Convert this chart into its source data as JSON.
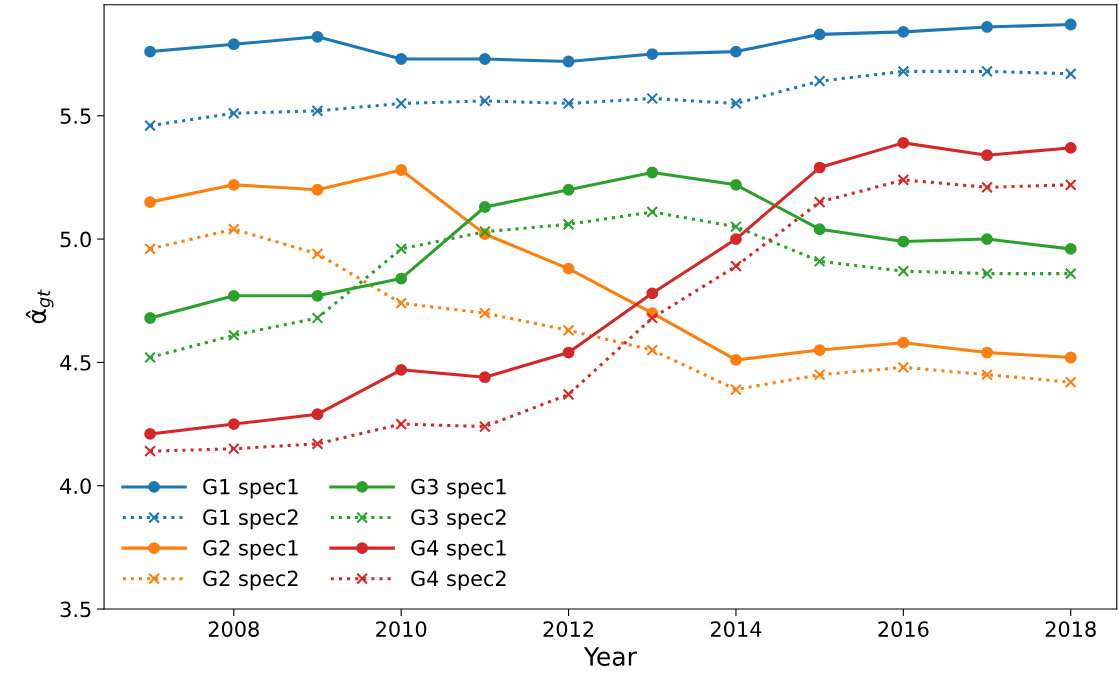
{
  "chart_data": {
    "type": "line",
    "xlabel": "Year",
    "ylabel": "α̂$_{gt}$",
    "x": [
      2007,
      2008,
      2009,
      2010,
      2011,
      2012,
      2013,
      2014,
      2015,
      2016,
      2017,
      2018
    ],
    "xlim": [
      2006.45,
      2018.55
    ],
    "xticks": [
      2008,
      2010,
      2012,
      2014,
      2016,
      2018
    ],
    "ylim": [
      3.5,
      5.95
    ],
    "yticks": [
      {
        "value": 3.5,
        "label": "3.5"
      },
      {
        "value": 4.0,
        "label": "4.0"
      },
      {
        "value": 4.5,
        "label": "4.5"
      },
      {
        "value": 5.0,
        "label": "5.0"
      },
      {
        "value": 5.5,
        "label": "5.5"
      }
    ],
    "grid": false,
    "legend": "bottom left",
    "series": [
      {
        "name": "G1 spec1",
        "color": "#1f77b4",
        "marker": "circle",
        "line_style": "solid",
        "values": [
          5.76,
          5.79,
          5.82,
          5.73,
          5.73,
          5.72,
          5.75,
          5.76,
          5.83,
          5.84,
          5.86,
          5.87
        ]
      },
      {
        "name": "G1 spec2",
        "color": "#1f77b4",
        "marker": "cross",
        "line_style": "dotted",
        "values": [
          5.46,
          5.51,
          5.52,
          5.55,
          5.56,
          5.55,
          5.57,
          5.55,
          5.64,
          5.68,
          5.68,
          5.67
        ]
      },
      {
        "name": "G2 spec1",
        "color": "#ff7f0e",
        "marker": "circle",
        "line_style": "solid",
        "values": [
          5.15,
          5.22,
          5.2,
          5.28,
          5.02,
          4.88,
          4.7,
          4.51,
          4.55,
          4.58,
          4.54,
          4.52
        ]
      },
      {
        "name": "G2 spec2",
        "color": "#ff7f0e",
        "marker": "cross",
        "line_style": "dotted",
        "values": [
          4.96,
          5.04,
          4.94,
          4.74,
          4.7,
          4.63,
          4.55,
          4.39,
          4.45,
          4.48,
          4.45,
          4.42
        ]
      },
      {
        "name": "G3 spec1",
        "color": "#2ca02c",
        "marker": "circle",
        "line_style": "solid",
        "values": [
          4.68,
          4.77,
          4.77,
          4.84,
          5.13,
          5.2,
          5.27,
          5.22,
          5.04,
          4.99,
          5.0,
          4.96
        ]
      },
      {
        "name": "G3 spec2",
        "color": "#2ca02c",
        "marker": "cross",
        "line_style": "dotted",
        "values": [
          4.52,
          4.61,
          4.68,
          4.96,
          5.03,
          5.06,
          5.11,
          5.05,
          4.91,
          4.87,
          4.86,
          4.86
        ]
      },
      {
        "name": "G4 spec1",
        "color": "#d62728",
        "marker": "circle",
        "line_style": "solid",
        "values": [
          4.21,
          4.25,
          4.29,
          4.47,
          4.44,
          4.54,
          4.78,
          5.0,
          5.29,
          5.39,
          5.34,
          5.37
        ]
      },
      {
        "name": "G4 spec2",
        "color": "#d62728",
        "marker": "cross",
        "line_style": "dotted",
        "values": [
          4.14,
          4.15,
          4.17,
          4.25,
          4.24,
          4.37,
          4.68,
          4.89,
          5.15,
          5.24,
          5.21,
          5.22
        ]
      }
    ]
  }
}
